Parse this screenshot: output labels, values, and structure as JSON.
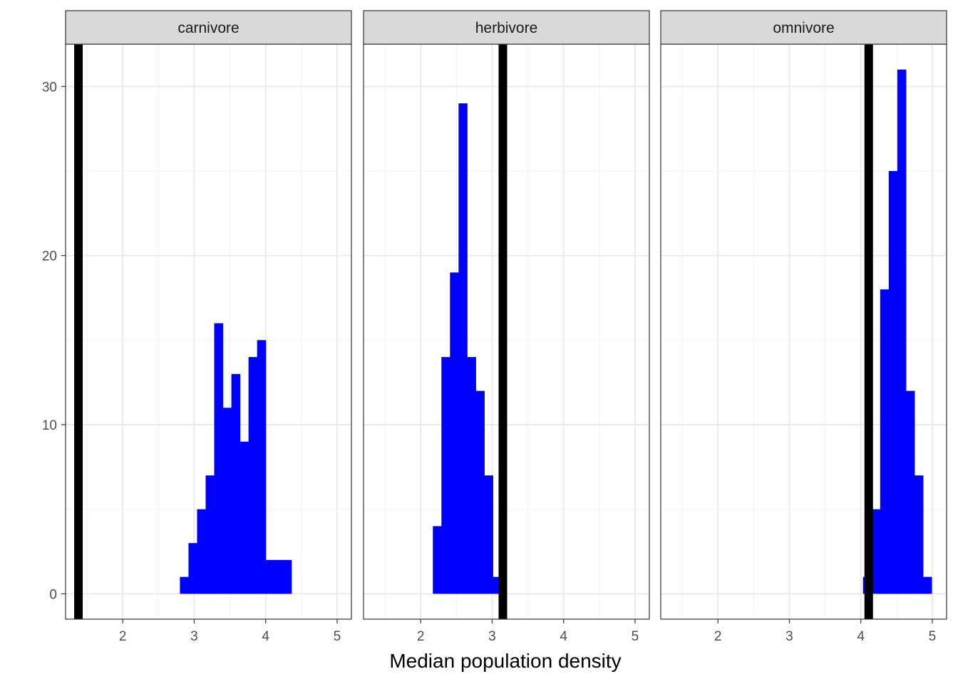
{
  "chart_data": {
    "type": "bar",
    "xlabel": "Median population density",
    "ylabel": "",
    "xlim": [
      1.2,
      5.2
    ],
    "ylim": [
      -1.5,
      32.5
    ],
    "x_ticks": [
      2,
      3,
      4,
      5
    ],
    "y_ticks": [
      0,
      10,
      20,
      30
    ],
    "x_tick_labels": [
      "2",
      "3",
      "4",
      "5"
    ],
    "y_tick_labels": [
      "0",
      "10",
      "20",
      "30"
    ],
    "bin_width": 0.12,
    "bar_color": "#0000ff",
    "vline_color": "#000000",
    "grid": true,
    "facets": [
      {
        "label": "carnivore",
        "vline": 1.38,
        "bins": [
          {
            "x0": 2.8,
            "x1": 2.92,
            "count": 1
          },
          {
            "x0": 2.92,
            "x1": 3.04,
            "count": 3
          },
          {
            "x0": 3.04,
            "x1": 3.16,
            "count": 5
          },
          {
            "x0": 3.16,
            "x1": 3.28,
            "count": 7
          },
          {
            "x0": 3.28,
            "x1": 3.4,
            "count": 16
          },
          {
            "x0": 3.4,
            "x1": 3.52,
            "count": 11
          },
          {
            "x0": 3.52,
            "x1": 3.64,
            "count": 13
          },
          {
            "x0": 3.64,
            "x1": 3.76,
            "count": 9
          },
          {
            "x0": 3.76,
            "x1": 3.88,
            "count": 14
          },
          {
            "x0": 3.88,
            "x1": 4.0,
            "count": 15
          },
          {
            "x0": 4.0,
            "x1": 4.12,
            "count": 2
          },
          {
            "x0": 4.12,
            "x1": 4.24,
            "count": 2
          },
          {
            "x0": 4.24,
            "x1": 4.36,
            "count": 2
          }
        ]
      },
      {
        "label": "herbivore",
        "vline": 3.15,
        "bins": [
          {
            "x0": 2.17,
            "x1": 2.29,
            "count": 4
          },
          {
            "x0": 2.29,
            "x1": 2.41,
            "count": 14
          },
          {
            "x0": 2.41,
            "x1": 2.53,
            "count": 19
          },
          {
            "x0": 2.53,
            "x1": 2.65,
            "count": 29
          },
          {
            "x0": 2.65,
            "x1": 2.77,
            "count": 14
          },
          {
            "x0": 2.77,
            "x1": 2.89,
            "count": 12
          },
          {
            "x0": 2.89,
            "x1": 3.01,
            "count": 7
          },
          {
            "x0": 3.01,
            "x1": 3.13,
            "count": 1
          }
        ]
      },
      {
        "label": "omnivore",
        "vline": 4.11,
        "bins": [
          {
            "x0": 4.03,
            "x1": 4.15,
            "count": 1
          },
          {
            "x0": 4.15,
            "x1": 4.27,
            "count": 5
          },
          {
            "x0": 4.27,
            "x1": 4.39,
            "count": 18
          },
          {
            "x0": 4.39,
            "x1": 4.51,
            "count": 25
          },
          {
            "x0": 4.51,
            "x1": 4.63,
            "count": 31
          },
          {
            "x0": 4.63,
            "x1": 4.75,
            "count": 12
          },
          {
            "x0": 4.75,
            "x1": 4.87,
            "count": 7
          },
          {
            "x0": 4.87,
            "x1": 4.99,
            "count": 1
          }
        ]
      }
    ]
  }
}
